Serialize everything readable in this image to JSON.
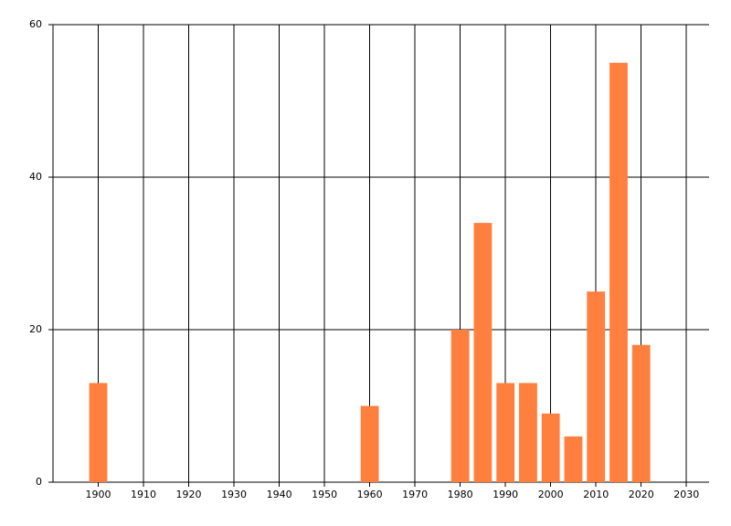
{
  "chart_data": {
    "type": "bar",
    "x": [
      1900,
      1960,
      1980,
      1985,
      1990,
      1995,
      2000,
      2005,
      2010,
      2015,
      2020
    ],
    "values": [
      13,
      10,
      20,
      34,
      13,
      13,
      9,
      6,
      25,
      55,
      18
    ],
    "color": "#ff7f3f",
    "xlim": [
      1890,
      2035
    ],
    "xticks": [
      1900,
      1910,
      1920,
      1930,
      1940,
      1950,
      1960,
      1970,
      1980,
      1990,
      2000,
      2010,
      2020,
      2030
    ],
    "ylim": [
      0,
      60
    ],
    "yticks": [
      0,
      20,
      40,
      60
    ],
    "grid": true
  }
}
